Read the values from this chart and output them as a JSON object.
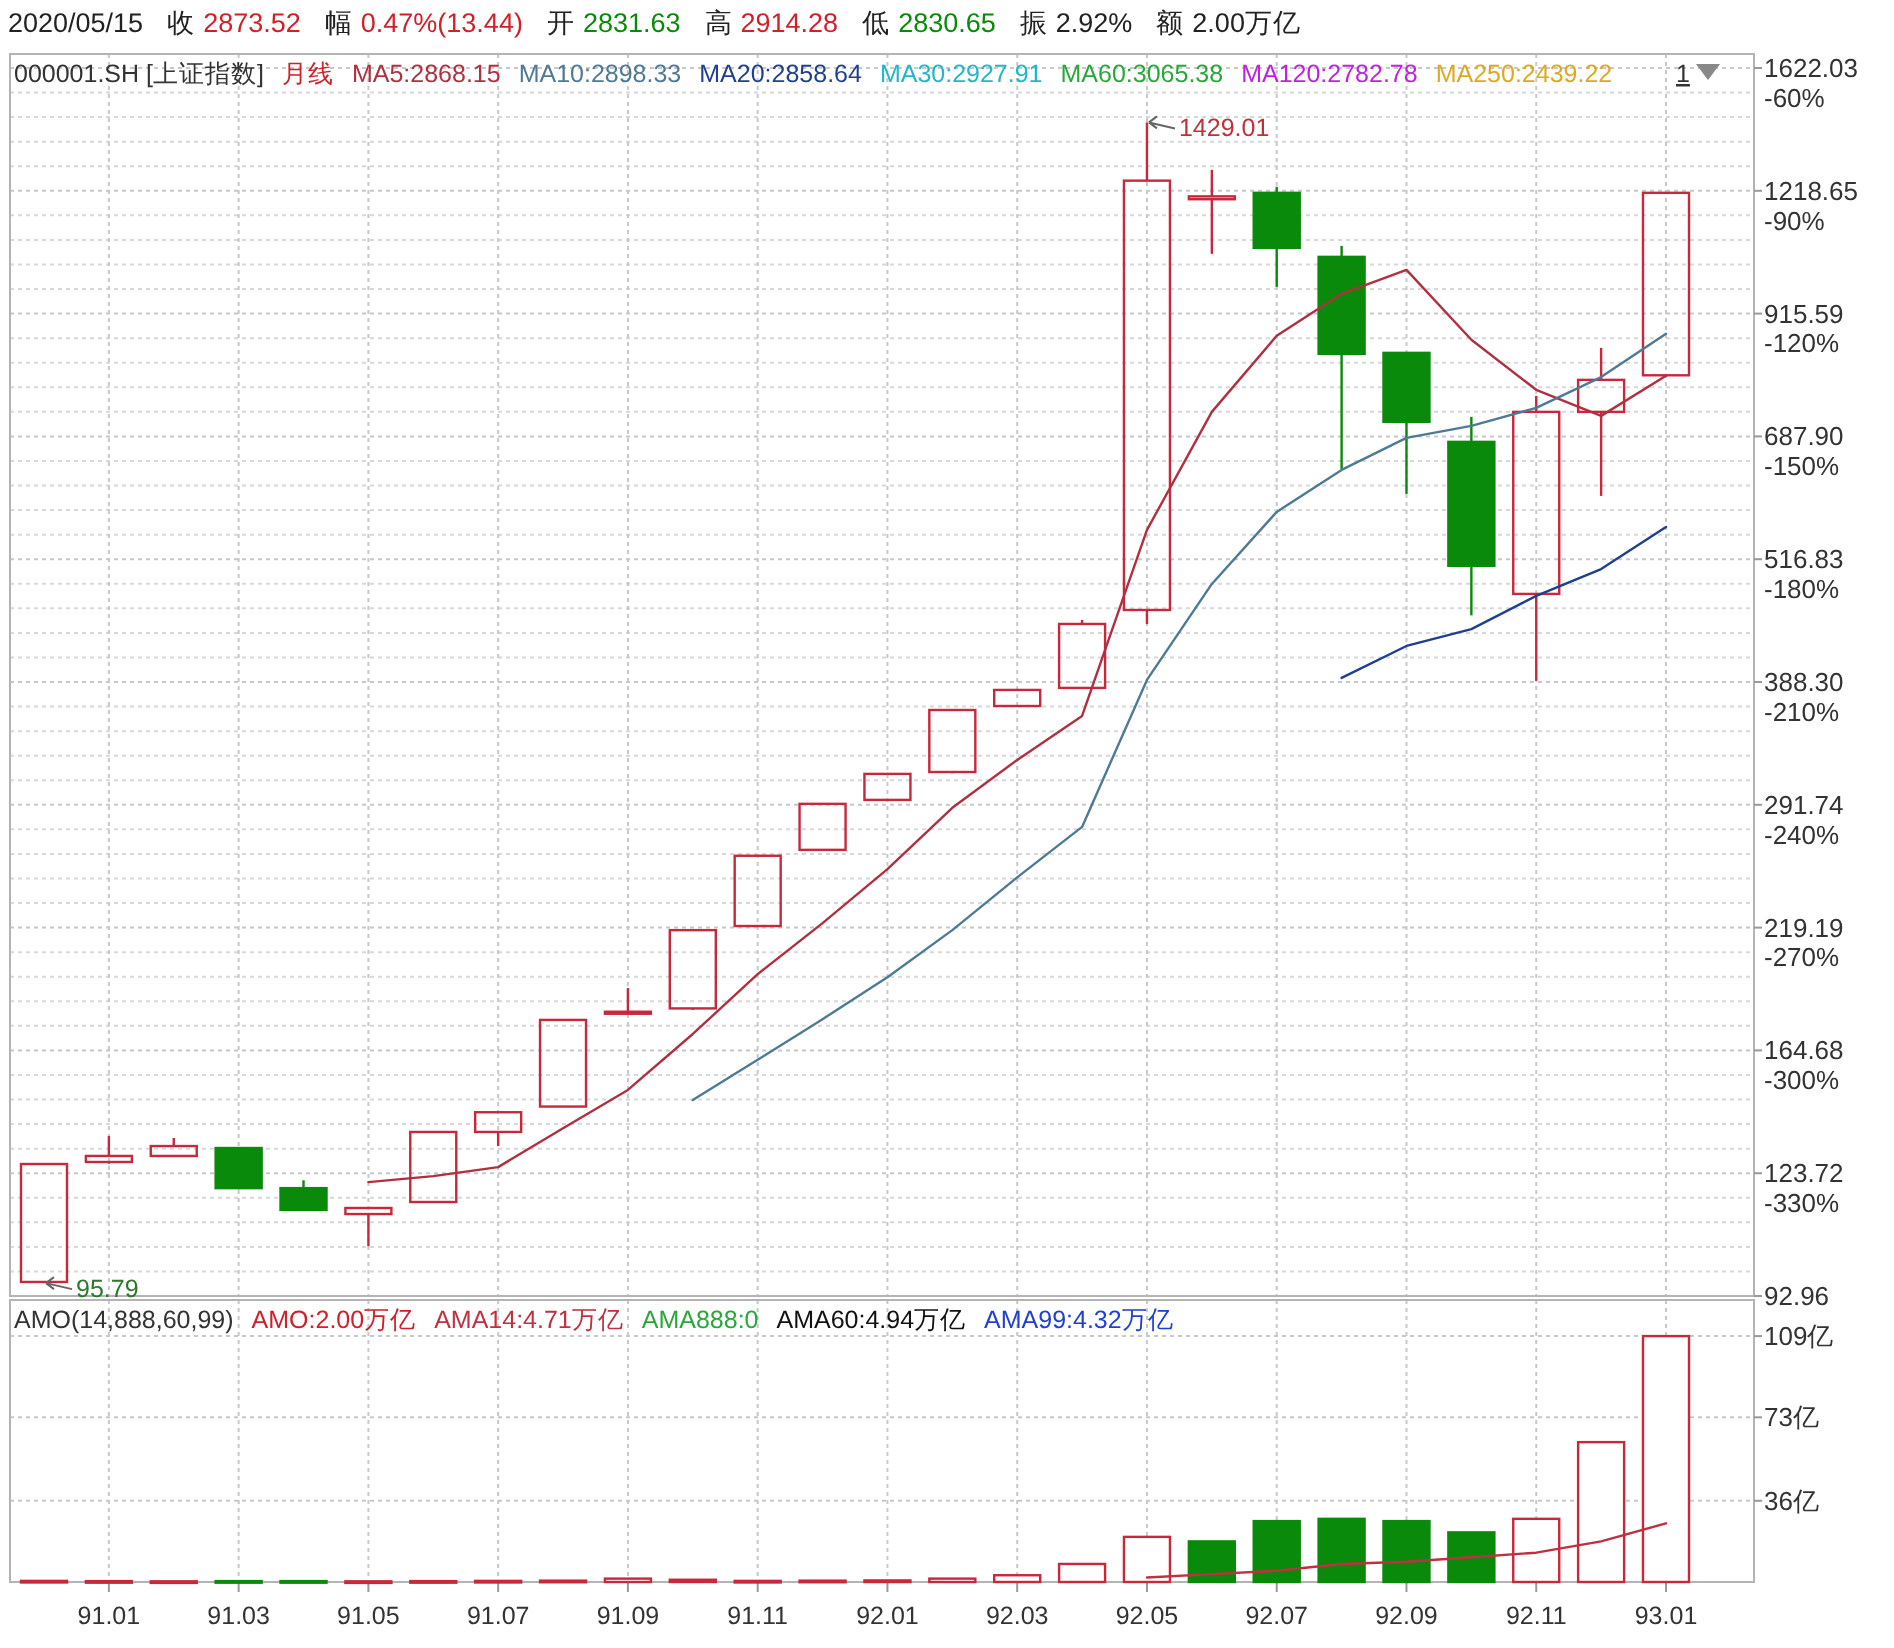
{
  "chart_data": [
    {
      "type": "candlestick",
      "subtitle": "000001.SH [上证指数]",
      "categories": [
        null,
        "91.01",
        null,
        "91.03",
        null,
        "91.05",
        null,
        "91.07",
        null,
        "91.09",
        null,
        "91.11",
        null,
        "92.01",
        null,
        "92.03",
        null,
        "92.05",
        null,
        "92.07",
        null,
        "92.09",
        null,
        "92.11",
        null,
        "93.01"
      ],
      "ohlc": [
        [
          96.05,
          126.4,
          95.79,
          126.4
        ],
        [
          127.0,
          134.9,
          126.5,
          128.8
        ],
        [
          128.8,
          134.3,
          128.5,
          131.8
        ],
        [
          131.2,
          131.5,
          119.2,
          119.5
        ],
        [
          119.5,
          121.7,
          113.4,
          113.6
        ],
        [
          112.5,
          114.3,
          104.4,
          114.1
        ],
        [
          115.7,
          136.4,
          115.5,
          136.2
        ],
        [
          136.2,
          142.6,
          131.8,
          142.6
        ],
        [
          144.5,
          177.0,
          144.5,
          176.8
        ],
        [
          179.5,
          190.4,
          179.3,
          180.2
        ],
        [
          181.6,
          218.0,
          181.0,
          217.9
        ],
        [
          220.0,
          259.5,
          219.5,
          259.1
        ],
        [
          262.7,
          292.8,
          262.0,
          292.4
        ],
        [
          295.1,
          314.0,
          294.5,
          313.5
        ],
        [
          314.9,
          364.0,
          314.0,
          363.8
        ],
        [
          367.2,
          381.5,
          366.5,
          381.2
        ],
        [
          383.0,
          448.7,
          382.5,
          444.5
        ],
        [
          459.2,
          1429.01,
          444.5,
          1247.8
        ],
        [
          1195,
          1279.5,
          1052.2,
          1203
        ],
        [
          1212.9,
          1229.9,
          974.4,
          1067.1
        ],
        [
          1044.9,
          1072.0,
          637.5,
          833.6
        ],
        [
          835.6,
          836,
          601.7,
          711.6
        ],
        [
          679.2,
          719.9,
          453.5,
          508.9
        ],
        [
          476.7,
          756.0,
          389.4,
          728.3
        ],
        [
          728.3,
          845.4,
          598.9,
          784.7
        ],
        [
          793.1,
          1213,
          793.1,
          1212.9
        ]
      ],
      "colors": [
        "#c8283c",
        "#c8283c",
        "#c8283c",
        "#0a8a0a",
        "#0a8a0a",
        "#c8283c",
        "#c8283c",
        "#c8283c",
        "#c8283c",
        "#c8283c",
        "#c8283c",
        "#c8283c",
        "#c8283c",
        "#c8283c",
        "#c8283c",
        "#c8283c",
        "#c8283c",
        "#c8283c",
        "#c8283c",
        "#0a8a0a",
        "#0a8a0a",
        "#0a8a0a",
        "#0a8a0a",
        "#c8283c",
        "#c8283c",
        "#c8283c"
      ],
      "series": [
        {
          "type": "line",
          "name": "MA5:2868.15",
          "color": "#b03040",
          "values": [
            null,
            null,
            null,
            null,
            null,
            121.2,
            122.9,
            125.5,
            137.4,
            150.2,
            171.1,
            196.7,
            221.5,
            251.2,
            289.7,
            323.9,
            358.8,
            553.3,
            728.3,
            869.4,
            958.7,
            1013.7,
            861.4,
            766.7,
            721.6,
            792.1
          ]
        },
        {
          "type": "line",
          "name": "MA10:2898.33",
          "color": "#4d7a94",
          "values": [
            null,
            null,
            null,
            null,
            null,
            null,
            null,
            null,
            null,
            null,
            146.7,
            161.1,
            177.1,
            195.3,
            217.9,
            246.4,
            277.1,
            390.2,
            487.9,
            577.0,
            636.3,
            685.5,
            704.9,
            735.1,
            789.8,
            873.4
          ]
        },
        {
          "type": "line",
          "name": "MA20:2858.64",
          "color": "#1f3f8f",
          "values": [
            null,
            null,
            null,
            null,
            null,
            null,
            null,
            null,
            null,
            null,
            null,
            null,
            null,
            null,
            null,
            null,
            null,
            null,
            null,
            null,
            392.0,
            422.3,
            439.2,
            474.5,
            505.1,
            557.2
          ]
        }
      ],
      "log": true,
      "ylim": [
        92.96,
        1622.03
      ],
      "yticks": [
        92.96,
        123.72,
        164.68,
        219.19,
        291.74,
        {
          "value": 388.3,
          "label": "388.30"
        },
        516.83,
        {
          "value": 687.9,
          "label": "687.90"
        },
        915.59,
        1218.65,
        1622.03
      ],
      "y2lim": [
        -352.7,
        -52.7
      ],
      "y2ticks": [
        {
          "value": -330,
          "label": "-330%"
        },
        {
          "value": -300,
          "label": "-300%"
        },
        {
          "value": -270,
          "label": "-270%"
        },
        {
          "value": -240,
          "label": "-240%"
        },
        {
          "value": -210,
          "label": "-210%"
        },
        {
          "value": -180,
          "label": "-180%"
        },
        {
          "value": -150,
          "label": "-150%"
        },
        {
          "value": -120,
          "label": "-120%"
        },
        {
          "value": -90,
          "label": "-90%"
        },
        {
          "value": -60,
          "label": "-60%"
        }
      ],
      "grid": true,
      "legend": "top left",
      "tick_labels": "y",
      "annotations": [
        "2020/05/15",
        "收",
        "2873.52",
        "幅",
        "0.47%(13.44)",
        "开",
        "2831.63",
        "高",
        "2914.28",
        "低",
        "2830.65",
        "振",
        "2.92%",
        "额",
        "2.00万亿",
        "月线",
        "MA30:2927.91",
        "MA60:3065.38",
        "MA120:2782.78",
        "MA250:2439.22",
        "1",
        "95.79",
        "1429.01"
      ]
    },
    {
      "type": "bar",
      "title": "AMO(14,888,60,99)",
      "categories": [
        null,
        "91.01",
        null,
        "91.03",
        null,
        "91.05",
        null,
        "91.07",
        null,
        "91.09",
        null,
        "91.11",
        null,
        "92.01",
        null,
        "92.03",
        null,
        "92.05",
        null,
        "92.07",
        null,
        "92.09",
        null,
        "92.11",
        null,
        "93.01"
      ],
      "series": [
        {
          "type": "bar",
          "colors": [
            "#c8283c",
            "#c8283c",
            "#c8283c",
            "#0a8a0a",
            "#0a8a0a",
            "#c8283c",
            "#c8283c",
            "#c8283c",
            "#c8283c",
            "#c8283c",
            "#c8283c",
            "#c8283c",
            "#c8283c",
            "#c8283c",
            "#c8283c",
            "#c8283c",
            "#c8283c",
            "#c8283c",
            "#0a8a0a",
            "#0a8a0a",
            "#0a8a0a",
            "#0a8a0a",
            "#0a8a0a",
            "#c8283c",
            "#c8283c",
            "#c8283c"
          ],
          "values": [
            0.5,
            0.4,
            0.3,
            0.4,
            0.4,
            0.3,
            0.4,
            0.5,
            0.6,
            1.5,
            1,
            0.5,
            0.6,
            0.7,
            1.5,
            3,
            8,
            20,
            18,
            27,
            28,
            27,
            22,
            28,
            62,
            109
          ]
        },
        {
          "type": "line",
          "name": "AMA14:4.71万亿",
          "color": "#c03040",
          "values": [
            null,
            null,
            null,
            null,
            null,
            null,
            null,
            null,
            null,
            null,
            null,
            null,
            null,
            null,
            null,
            null,
            null,
            2,
            3.5,
            5,
            8,
            9,
            11,
            13,
            18,
            26
          ]
        }
      ],
      "ylim": [
        0,
        125
      ],
      "yticks": [
        {
          "value": 36,
          "label": "36亿"
        },
        {
          "value": 73,
          "label": "73亿"
        },
        {
          "value": 109,
          "label": "109亿"
        }
      ],
      "grid": true,
      "legend": "top left",
      "annotations": [
        "AMO:2.00万亿",
        "AMA888:0",
        "AMA60:4.94万亿",
        "AMA99:4.32万亿"
      ]
    }
  ]
}
